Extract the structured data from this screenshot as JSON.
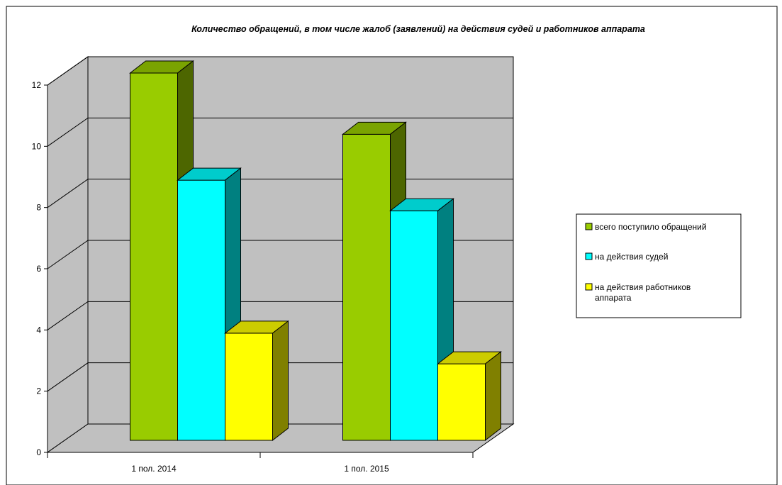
{
  "chart_data": {
    "type": "bar",
    "title": "Количество обращений, в том числе жалоб (заявлений) на действия судей и работников аппарата",
    "xlabel": "",
    "ylabel": "",
    "categories": [
      "1 пол. 2014",
      "1 пол. 2015"
    ],
    "ylim": [
      0,
      12
    ],
    "yticks": [
      "0",
      "2",
      "4",
      "6",
      "8",
      "10",
      "12"
    ],
    "grid": true,
    "three_d": true,
    "legend_position": "right",
    "series": [
      {
        "name": "всего поступило обращений",
        "values": [
          12,
          10
        ],
        "color": "#99cc00"
      },
      {
        "name": "на действия судей",
        "values": [
          8.5,
          7.5
        ],
        "color": "#00ffff"
      },
      {
        "name": "на действия работников аппарата",
        "values": [
          3.5,
          2.5
        ],
        "color": "#ffff00"
      }
    ],
    "legend_entries": [
      {
        "lines": [
          "всего поступило обращений"
        ]
      },
      {
        "lines": [
          "на действия судей"
        ]
      },
      {
        "lines": [
          "на действия работников",
          "аппарата"
        ]
      }
    ],
    "colors": {
      "wall": "#c0c0c0",
      "floor": "#c0c0c0",
      "gridline": "#000000"
    }
  }
}
